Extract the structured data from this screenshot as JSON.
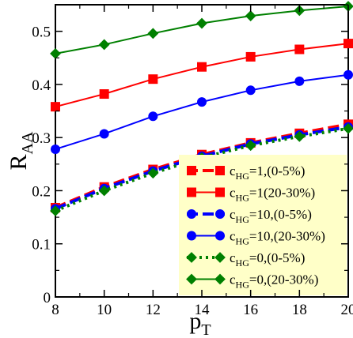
{
  "chart_data": {
    "type": "line",
    "xlabel_main": "p",
    "xlabel_sub": "T",
    "ylabel_main": "R",
    "ylabel_sub": "AA",
    "xlim": [
      8,
      20
    ],
    "ylim": [
      0,
      0.55
    ],
    "x_ticks": [
      "8",
      "10",
      "12",
      "14",
      "16",
      "18",
      "20"
    ],
    "y_ticks": [
      "0",
      "0.1",
      "0.2",
      "0.3",
      "0.4",
      "0.5"
    ],
    "grid": false,
    "legend_placement": "bottom-right",
    "legend_background": "#ffffc8",
    "x": [
      8,
      10,
      12,
      14,
      16,
      18,
      20
    ],
    "series": [
      {
        "legend_main": "c",
        "legend_sub": "HG",
        "legend_rest": "=1,(0-5%)",
        "color": "#ff0000",
        "marker": "square",
        "style": "dashed",
        "values": [
          0.168,
          0.207,
          0.24,
          0.268,
          0.29,
          0.308,
          0.325
        ]
      },
      {
        "legend_main": "c",
        "legend_sub": "HG",
        "legend_rest": "=1(20-30%)",
        "color": "#ff0000",
        "marker": "square",
        "style": "solid",
        "values": [
          0.358,
          0.382,
          0.41,
          0.433,
          0.452,
          0.466,
          0.477
        ]
      },
      {
        "legend_main": "c",
        "legend_sub": "HG",
        "legend_rest": "=10,(0-5%)",
        "color": "#0000ff",
        "marker": "circle",
        "style": "dashed",
        "values": [
          0.166,
          0.204,
          0.237,
          0.265,
          0.288,
          0.305,
          0.32
        ]
      },
      {
        "legend_main": "c",
        "legend_sub": "HG",
        "legend_rest": "=10,(20-30%)",
        "color": "#0000ff",
        "marker": "circle",
        "style": "solid",
        "values": [
          0.278,
          0.307,
          0.34,
          0.367,
          0.389,
          0.406,
          0.418
        ]
      },
      {
        "legend_main": "c",
        "legend_sub": "HG",
        "legend_rest": "=0,(0-5%)",
        "color": "#008000",
        "marker": "diamond",
        "style": "dotted",
        "values": [
          0.162,
          0.2,
          0.233,
          0.262,
          0.285,
          0.302,
          0.317
        ]
      },
      {
        "legend_main": "c",
        "legend_sub": "HG",
        "legend_rest": "=0,(20-30%)",
        "color": "#008000",
        "marker": "diamond",
        "style": "solid",
        "values": [
          0.458,
          0.475,
          0.496,
          0.515,
          0.529,
          0.539,
          0.547
        ]
      }
    ]
  }
}
